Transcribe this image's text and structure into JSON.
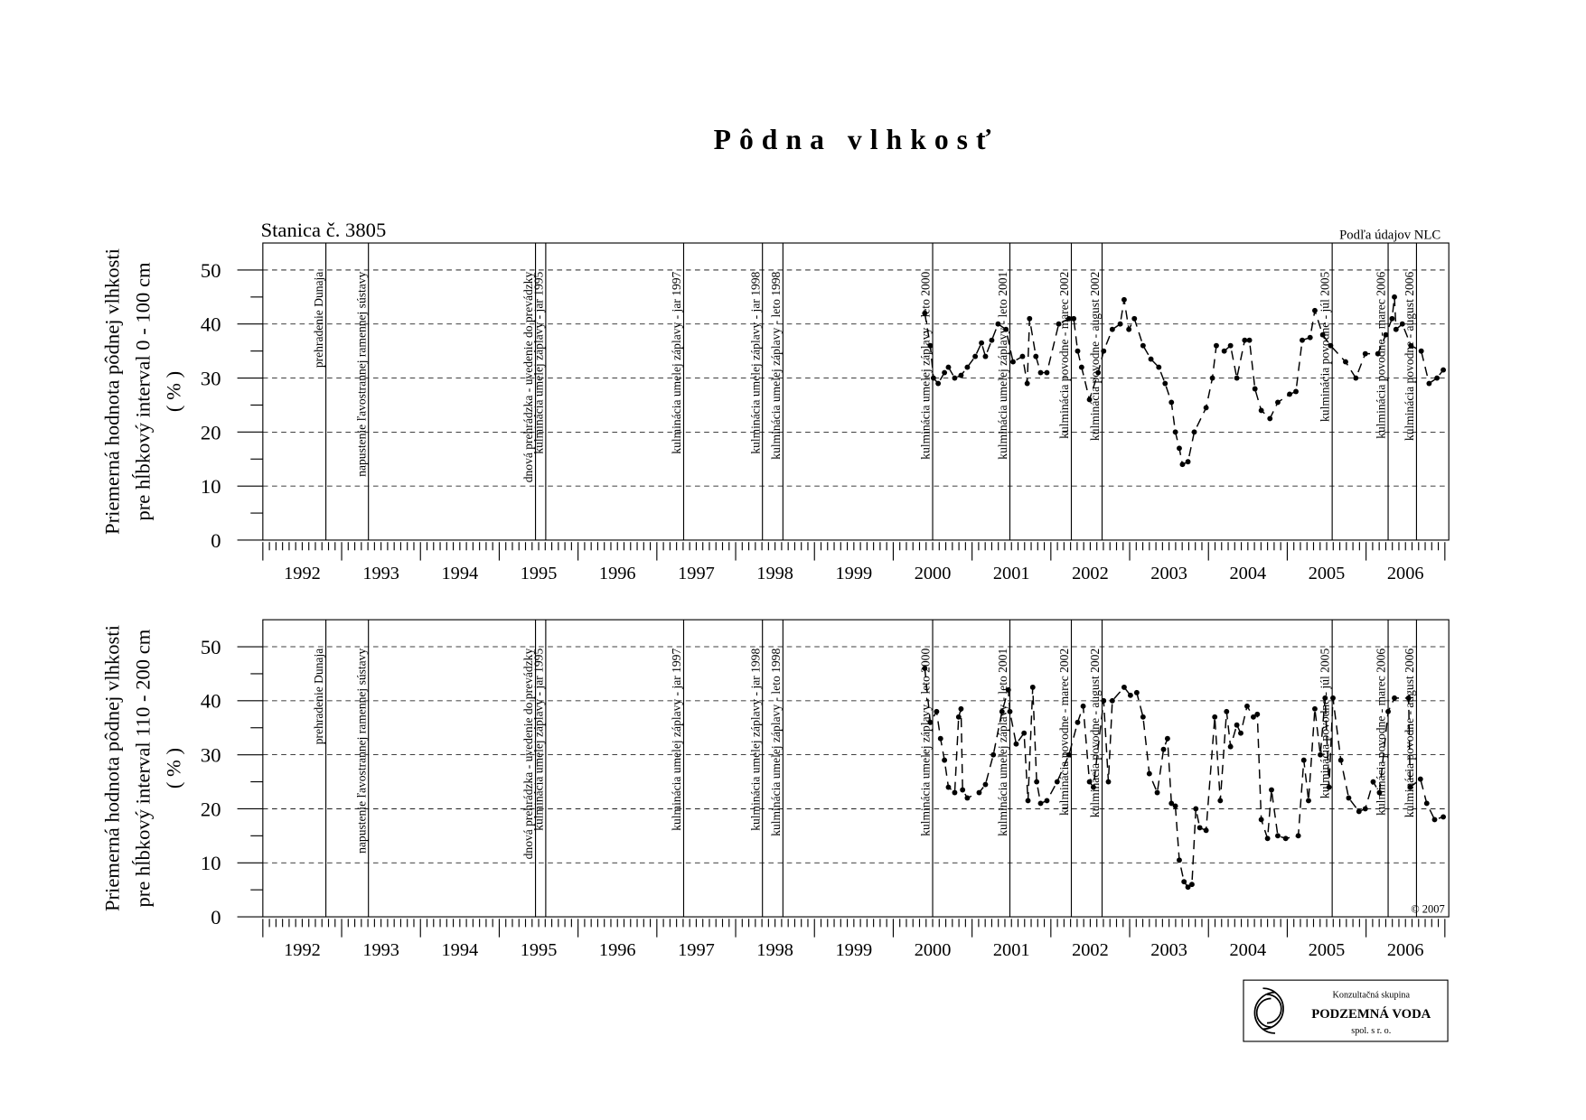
{
  "title": "Pôdna vlhkosť",
  "logo": {
    "line1": "Konzultačná skupina",
    "line2": "PODZEMNÁ VODA",
    "line3": "spol. s r. o."
  },
  "chart_data": [
    {
      "type": "line",
      "subtitle": "Stanica č. 3805",
      "source": "Podľa údajov NLC",
      "ylabel": [
        "Priemerná hodnota pôdnej vlhkosti",
        "pre hĺbkový interval 0 - 100 cm",
        "( % )"
      ],
      "xlim": [
        1992,
        2007.05
      ],
      "ylim": [
        0,
        55
      ],
      "yticks": [
        0,
        10,
        20,
        30,
        40,
        50
      ],
      "grid": true,
      "color": "#000000",
      "xticks": [
        {
          "value": 1992.5,
          "label": "1992"
        },
        {
          "value": 1993.5,
          "label": "1993"
        },
        {
          "value": 1994.5,
          "label": "1994"
        },
        {
          "value": 1995.5,
          "label": "1995"
        },
        {
          "value": 1996.5,
          "label": "1996"
        },
        {
          "value": 1997.5,
          "label": "1997"
        },
        {
          "value": 1998.5,
          "label": "1998"
        },
        {
          "value": 1999.5,
          "label": "1999"
        },
        {
          "value": 2000.5,
          "label": "2000"
        },
        {
          "value": 2001.5,
          "label": "2001"
        },
        {
          "value": 2002.5,
          "label": "2002"
        },
        {
          "value": 2003.5,
          "label": "2003"
        },
        {
          "value": 2004.5,
          "label": "2004"
        },
        {
          "value": 2005.5,
          "label": "2005"
        },
        {
          "value": 2006.5,
          "label": "2006"
        }
      ],
      "events": [
        {
          "x": 1992.8,
          "label": "prehradenie Dunaja"
        },
        {
          "x": 1993.34,
          "label": "napustenie ľavostrannej ramennej sústavy"
        },
        {
          "x": 1995.46,
          "label": "dnová prehrádzka - uvedenie do prevádzky"
        },
        {
          "x": 1995.59,
          "label": "kulminácia umelej záplavy - jar 1995"
        },
        {
          "x": 1997.34,
          "label": "kulminácia umelej záplavy - jar 1997"
        },
        {
          "x": 1998.34,
          "label": "kulminácia umelej záplavy - jar 1998"
        },
        {
          "x": 1998.6,
          "label": "kulminácia umelej záplavy - leto 1998"
        },
        {
          "x": 2000.5,
          "label": "kulminácia umelej záplavy - leto 2000"
        },
        {
          "x": 2001.48,
          "label": "kulminácia umelej záplavy - leto 2001"
        },
        {
          "x": 2002.26,
          "label": "kulminácia povodne - marec 2002"
        },
        {
          "x": 2002.65,
          "label": "kulminácia povodne - august 2002"
        },
        {
          "x": 2005.57,
          "label": "kulminácia povodne - júl 2005"
        },
        {
          "x": 2006.28,
          "label": "kulminácia povodne - marec 2006"
        },
        {
          "x": 2006.64,
          "label": "kulminácia povodne - august 2006"
        }
      ],
      "x": [
        2000.4,
        2000.47,
        2000.51,
        2000.57,
        2000.65,
        2000.7,
        2000.78,
        2000.86,
        2000.94,
        2001.04,
        2001.12,
        2001.17,
        2001.25,
        2001.33,
        2001.43,
        2001.52,
        2001.64,
        2001.7,
        2001.73,
        2001.81,
        2001.87,
        2001.95,
        2002.1,
        2002.23,
        2002.29,
        2002.34,
        2002.39,
        2002.49,
        2002.6,
        2002.67,
        2002.78,
        2002.88,
        2002.93,
        2002.99,
        2003.06,
        2003.17,
        2003.27,
        2003.37,
        2003.45,
        2003.53,
        2003.58,
        2003.63,
        2003.67,
        2003.74,
        2003.82,
        2003.97,
        2004.05,
        2004.1,
        2004.2,
        2004.28,
        2004.36,
        2004.46,
        2004.52,
        2004.59,
        2004.67,
        2004.78,
        2004.88,
        2005.03,
        2005.11,
        2005.19,
        2005.29,
        2005.35,
        2005.45,
        2005.55,
        2005.74,
        2005.87,
        2005.99,
        2006.15,
        2006.25,
        2006.33,
        2006.36,
        2006.38,
        2006.46,
        2006.57,
        2006.7,
        2006.8,
        2006.9,
        2006.98
      ],
      "values": [
        42,
        36,
        30,
        29,
        31,
        32,
        30,
        30.5,
        32,
        34,
        36.5,
        34,
        37,
        40,
        39,
        33,
        34,
        29,
        41,
        34,
        31,
        31,
        40,
        41,
        41,
        35,
        32,
        26,
        31,
        35,
        39,
        40,
        44.5,
        39,
        41,
        36,
        33.5,
        32,
        29,
        25.5,
        20,
        17,
        14,
        14.5,
        20,
        24.5,
        30,
        36,
        35,
        36,
        30,
        37,
        37,
        28,
        24,
        22.5,
        25.5,
        27,
        27.5,
        37,
        37.5,
        42.5,
        38,
        36,
        33,
        30,
        34.5,
        34.5,
        38,
        41,
        45,
        39,
        40,
        36,
        35,
        29,
        30,
        31.5
      ]
    },
    {
      "type": "line",
      "note": "© 2007",
      "ylabel": [
        "Priemerná hodnota pôdnej vlhkosti",
        "pre hĺbkový interval 110 - 200 cm",
        "( % )"
      ],
      "xlim": [
        1992,
        2007.05
      ],
      "ylim": [
        0,
        55
      ],
      "yticks": [
        0,
        10,
        20,
        30,
        40,
        50
      ],
      "grid": true,
      "color": "#000000",
      "xticks": [
        {
          "value": 1992.5,
          "label": "1992"
        },
        {
          "value": 1993.5,
          "label": "1993"
        },
        {
          "value": 1994.5,
          "label": "1994"
        },
        {
          "value": 1995.5,
          "label": "1995"
        },
        {
          "value": 1996.5,
          "label": "1996"
        },
        {
          "value": 1997.5,
          "label": "1997"
        },
        {
          "value": 1998.5,
          "label": "1998"
        },
        {
          "value": 1999.5,
          "label": "1999"
        },
        {
          "value": 2000.5,
          "label": "2000"
        },
        {
          "value": 2001.5,
          "label": "2001"
        },
        {
          "value": 2002.5,
          "label": "2002"
        },
        {
          "value": 2003.5,
          "label": "2003"
        },
        {
          "value": 2004.5,
          "label": "2004"
        },
        {
          "value": 2005.5,
          "label": "2005"
        },
        {
          "value": 2006.5,
          "label": "2006"
        }
      ],
      "events": [
        {
          "x": 1992.8,
          "label": "prehradenie Dunaja"
        },
        {
          "x": 1993.34,
          "label": "napustenie ľavostrannej ramennej sústavy"
        },
        {
          "x": 1995.46,
          "label": "dnová prehrádzka - uvedenie do prevádzky"
        },
        {
          "x": 1995.59,
          "label": "kulminácia umelej záplavy - jar 1995"
        },
        {
          "x": 1997.34,
          "label": "kulminácia umelej záplavy - jar 1997"
        },
        {
          "x": 1998.34,
          "label": "kulminácia umelej záplavy - jar 1998"
        },
        {
          "x": 1998.6,
          "label": "kulminácia umelej záplavy - leto 1998"
        },
        {
          "x": 2000.5,
          "label": "kulminácia umelej záplavy - leto 2000"
        },
        {
          "x": 2001.48,
          "label": "kulminácia umelej záplavy - leto 2001"
        },
        {
          "x": 2002.26,
          "label": "kulminácia povodne - marec 2002"
        },
        {
          "x": 2002.65,
          "label": "kulminácia povodne - august 2002"
        },
        {
          "x": 2005.57,
          "label": "kulminácia povodne - júl 2005"
        },
        {
          "x": 2006.28,
          "label": "kulminácia povodne - marec 2006"
        },
        {
          "x": 2006.64,
          "label": "kulminácia povodne - august 2006"
        }
      ],
      "x": [
        2000.4,
        2000.47,
        2000.55,
        2000.6,
        2000.65,
        2000.7,
        2000.78,
        2000.83,
        2000.86,
        2000.88,
        2000.94,
        2001.09,
        2001.17,
        2001.27,
        2001.38,
        2001.46,
        2001.48,
        2001.56,
        2001.66,
        2001.71,
        2001.77,
        2001.82,
        2001.87,
        2001.95,
        2002.08,
        2002.23,
        2002.34,
        2002.41,
        2002.49,
        2002.54,
        2002.67,
        2002.73,
        2002.78,
        2002.93,
        2003.01,
        2003.09,
        2003.17,
        2003.25,
        2003.35,
        2003.43,
        2003.48,
        2003.53,
        2003.58,
        2003.63,
        2003.69,
        2003.74,
        2003.79,
        2003.84,
        2003.89,
        2003.97,
        2004.08,
        2004.15,
        2004.23,
        2004.28,
        2004.36,
        2004.41,
        2004.49,
        2004.57,
        2004.62,
        2004.67,
        2004.75,
        2004.8,
        2004.88,
        2004.98,
        2005.14,
        2005.21,
        2005.27,
        2005.35,
        2005.42,
        2005.48,
        2005.53,
        2005.58,
        2005.68,
        2005.78,
        2005.91,
        2005.99,
        2006.09,
        2006.17,
        2006.28,
        2006.36,
        2006.54,
        2006.56,
        2006.69,
        2006.77,
        2006.87,
        2006.98
      ],
      "values": [
        46,
        36,
        38,
        33,
        29,
        24,
        23,
        37,
        38.5,
        23.5,
        22,
        23,
        24.5,
        30,
        38,
        42,
        38,
        32,
        34,
        21.5,
        42.5,
        25,
        21,
        21.5,
        25,
        30,
        36,
        39,
        25,
        24,
        40,
        25,
        40,
        42.5,
        41,
        41.5,
        37,
        26.5,
        23,
        31,
        33,
        21,
        20.5,
        10.5,
        6.5,
        5.5,
        6,
        20,
        16.5,
        16,
        37,
        21.5,
        38,
        31.5,
        35.5,
        34,
        39,
        37,
        37.5,
        18,
        14.5,
        23.5,
        15,
        14.5,
        15,
        29,
        21.5,
        38.5,
        30,
        40.5,
        24,
        40.5,
        29,
        22,
        19.5,
        20,
        25,
        23,
        38,
        40.5,
        40.5,
        24,
        25.5,
        21,
        18,
        18.5
      ]
    }
  ]
}
